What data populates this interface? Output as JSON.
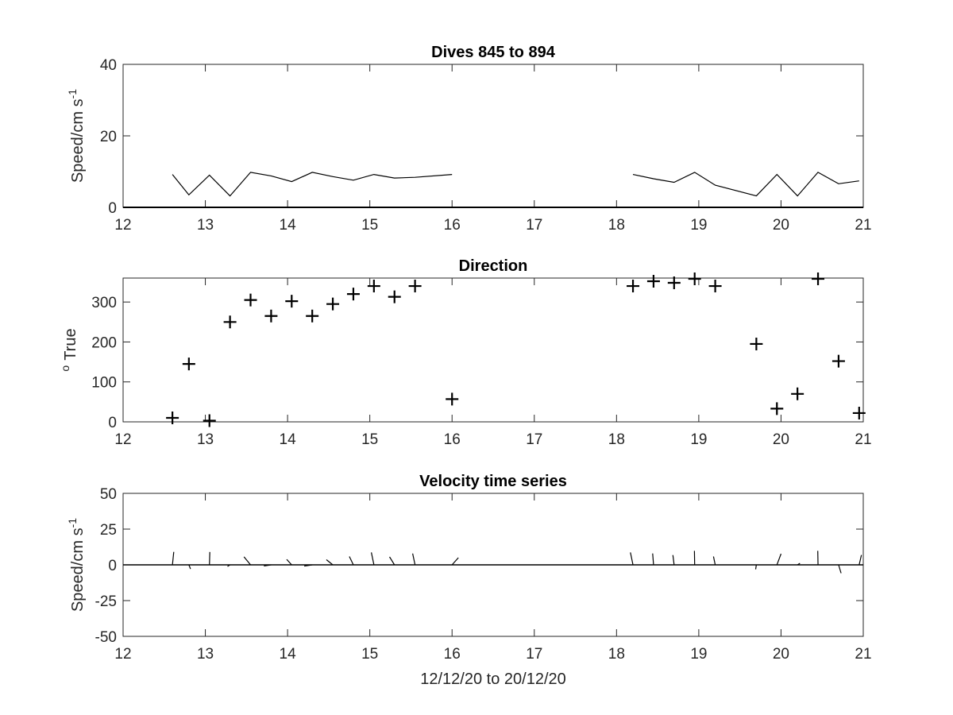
{
  "chart_data": [
    {
      "type": "line",
      "title": "Dives 845 to 894",
      "ylabel": "Speed/cm s",
      "ylabel_superscript": "-1",
      "xlim": [
        12,
        21
      ],
      "ylim": [
        0,
        40
      ],
      "xticks": [
        12,
        13,
        14,
        15,
        16,
        17,
        18,
        19,
        20,
        21
      ],
      "yticks": [
        0,
        20,
        40
      ],
      "series": [
        {
          "x": [
            12.6,
            12.8,
            13.05,
            13.3,
            13.55,
            13.8,
            14.05,
            14.3,
            14.55,
            14.8,
            15.05,
            15.3,
            15.55,
            16.0
          ],
          "y": [
            9.2,
            3.5,
            9.0,
            3.2,
            9.8,
            8.8,
            7.2,
            9.8,
            8.6,
            7.6,
            9.2,
            8.2,
            8.4,
            9.2
          ]
        },
        {
          "x": [
            18.2,
            18.45,
            18.7,
            18.95,
            19.2,
            19.7,
            19.95,
            20.2,
            20.45,
            20.7,
            20.95
          ],
          "y": [
            9.2,
            8.0,
            7.0,
            9.8,
            6.2,
            3.2,
            9.2,
            3.2,
            9.8,
            6.6,
            7.4
          ]
        }
      ],
      "zero_line": true,
      "grid": false
    },
    {
      "type": "scatter",
      "title": "Direction",
      "ylabel": "True",
      "ylabel_prefix_superscript": "o",
      "xlim": [
        12,
        21
      ],
      "ylim": [
        0,
        360
      ],
      "xticks": [
        12,
        13,
        14,
        15,
        16,
        17,
        18,
        19,
        20,
        21
      ],
      "yticks": [
        0,
        100,
        200,
        300
      ],
      "marker": "plus",
      "series": [
        {
          "x": [
            12.6,
            12.8,
            13.05,
            13.3,
            13.55,
            13.8,
            14.05,
            14.3,
            14.55,
            14.8,
            15.05,
            15.3,
            15.55,
            16.0,
            18.2,
            18.45,
            18.7,
            18.95,
            19.2,
            19.7,
            19.95,
            20.2,
            20.45,
            20.7,
            20.95
          ],
          "y": [
            10,
            145,
            3,
            250,
            305,
            265,
            302,
            265,
            295,
            320,
            340,
            313,
            340,
            57,
            340,
            352,
            348,
            358,
            340,
            195,
            33,
            70,
            358,
            152,
            22
          ]
        }
      ],
      "grid": false
    },
    {
      "type": "quiver",
      "title": "Velocity time series",
      "ylabel": "Speed/cm s",
      "ylabel_superscript": "-1",
      "xlabel": "12/12/20 to 20/12/20",
      "xlim": [
        12,
        21
      ],
      "ylim": [
        -50,
        50
      ],
      "xticks": [
        12,
        13,
        14,
        15,
        16,
        17,
        18,
        19,
        20,
        21
      ],
      "yticks": [
        50,
        25,
        0,
        -25,
        -50
      ],
      "units_per_x_unit": 100,
      "zero_line": true,
      "series": [
        {
          "x": [
            12.6,
            12.8,
            13.05,
            13.3,
            13.55,
            13.8,
            14.05,
            14.3,
            14.55,
            14.8,
            15.05,
            15.3,
            15.55,
            16.0,
            18.2,
            18.45,
            18.7,
            18.95,
            19.2,
            19.7,
            19.95,
            20.2,
            20.45,
            20.7,
            20.95
          ],
          "speed": [
            9.2,
            3.5,
            9.0,
            3.2,
            9.8,
            8.8,
            7.2,
            9.8,
            8.6,
            7.6,
            9.2,
            8.2,
            8.4,
            9.2,
            9.2,
            8.0,
            7.0,
            9.8,
            6.2,
            3.2,
            9.2,
            3.2,
            9.8,
            6.6,
            7.4
          ],
          "direction_deg": [
            10,
            145,
            3,
            250,
            305,
            265,
            302,
            265,
            295,
            320,
            340,
            313,
            340,
            57,
            340,
            352,
            348,
            358,
            340,
            195,
            33,
            70,
            358,
            152,
            22
          ]
        }
      ],
      "grid": false
    }
  ]
}
